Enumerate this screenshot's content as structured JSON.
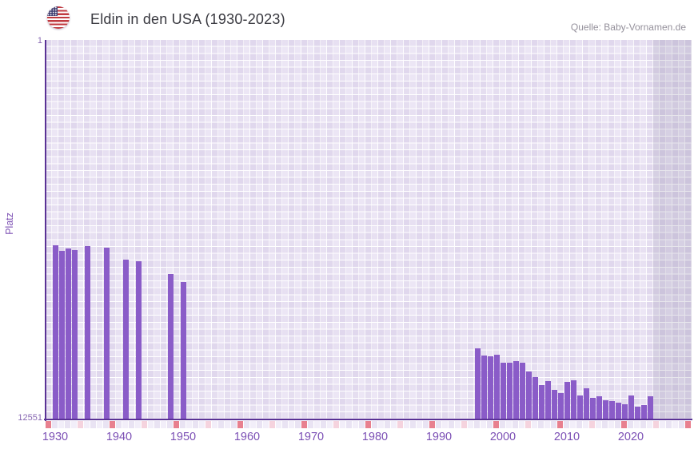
{
  "header": {
    "title": "Eldin in den USA (1930-2023)",
    "source": "Quelle: Baby-Vornamen.de",
    "flag_icon": "us-flag"
  },
  "y_axis": {
    "label": "Platz",
    "top_tick": "1",
    "bottom_tick": "12551"
  },
  "x_axis": {
    "ticks": [
      "1930",
      "1940",
      "1950",
      "1960",
      "1970",
      "1980",
      "1990",
      "2000",
      "2010",
      "2020"
    ],
    "start_year": 1929,
    "end_year": 2029
  },
  "chart_data": {
    "type": "bar",
    "title": "Eldin in den USA (1930-2023)",
    "ylabel": "Platz",
    "ylim": [
      1,
      12551
    ],
    "y_inverted": true,
    "grid": "checkerboard",
    "legend": "none",
    "x_range": {
      "start_year": 1929,
      "end_year": 2029
    },
    "points": [
      {
        "year": 1930,
        "rank": 6805
      },
      {
        "year": 1931,
        "rank": 6990
      },
      {
        "year": 1932,
        "rank": 6910
      },
      {
        "year": 1933,
        "rank": 6965
      },
      {
        "year": 1935,
        "rank": 6830
      },
      {
        "year": 1938,
        "rank": 6885
      },
      {
        "year": 1941,
        "rank": 7280
      },
      {
        "year": 1943,
        "rank": 7335
      },
      {
        "year": 1948,
        "rank": 7760
      },
      {
        "year": 1950,
        "rank": 8020
      },
      {
        "year": 1996,
        "rank": 10220
      },
      {
        "year": 1997,
        "rank": 10460
      },
      {
        "year": 1998,
        "rank": 10485
      },
      {
        "year": 1999,
        "rank": 10430
      },
      {
        "year": 2000,
        "rank": 10700
      },
      {
        "year": 2001,
        "rank": 10700
      },
      {
        "year": 2002,
        "rank": 10645
      },
      {
        "year": 2003,
        "rank": 10700
      },
      {
        "year": 2004,
        "rank": 10990
      },
      {
        "year": 2005,
        "rank": 11175
      },
      {
        "year": 2006,
        "rank": 11440
      },
      {
        "year": 2007,
        "rank": 11305
      },
      {
        "year": 2008,
        "rank": 11600
      },
      {
        "year": 2009,
        "rank": 11705
      },
      {
        "year": 2010,
        "rank": 11335
      },
      {
        "year": 2011,
        "rank": 11280
      },
      {
        "year": 2012,
        "rank": 11785
      },
      {
        "year": 2013,
        "rank": 11545
      },
      {
        "year": 2014,
        "rank": 11865
      },
      {
        "year": 2015,
        "rank": 11810
      },
      {
        "year": 2016,
        "rank": 11940
      },
      {
        "year": 2017,
        "rank": 11970
      },
      {
        "year": 2018,
        "rank": 12020
      },
      {
        "year": 2019,
        "rank": 12075
      },
      {
        "year": 2020,
        "rank": 11785
      },
      {
        "year": 2021,
        "rank": 12155
      },
      {
        "year": 2022,
        "rank": 12100
      },
      {
        "year": 2023,
        "rank": 11810
      }
    ],
    "colors": {
      "bar": "#8a5cc8",
      "axis_line": "#5a3295",
      "x_tick_label": "#7c50b5",
      "y_tick_label": "#8767b2",
      "title": "#38383f",
      "source": "#94909b",
      "grid_cell": "#ece6f5",
      "future_band": "rgba(97,87,126,0.15)",
      "marker_decade_red": "#e8808f",
      "marker_half_decade_pink": "#f5d3de"
    }
  }
}
